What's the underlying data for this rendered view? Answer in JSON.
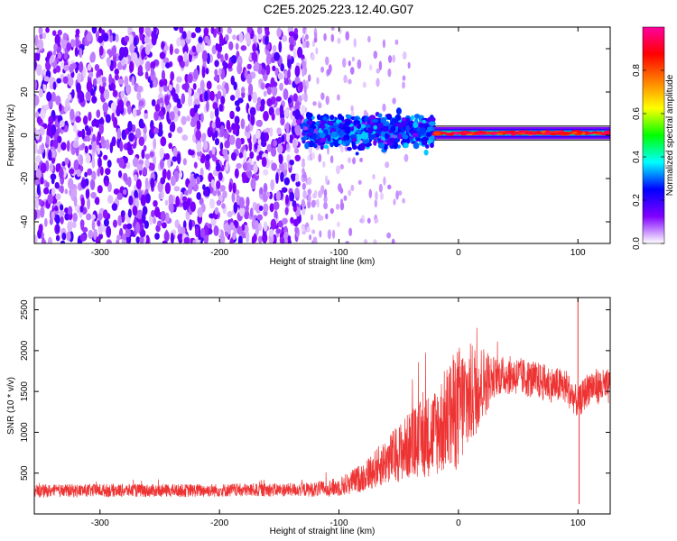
{
  "title": "C2E5.2025.223.12.40.G07",
  "chart_data": [
    {
      "type": "heatmap",
      "xlabel": "Height of straight line (km)",
      "ylabel": "Frequency (Hz)",
      "xlim": [
        -355,
        127
      ],
      "ylim": [
        -50,
        50
      ],
      "xticks": [
        -300,
        -200,
        -100,
        0,
        100
      ],
      "yticks": [
        -40,
        -20,
        0,
        20,
        40
      ],
      "grid": false,
      "description_of_data": [
        {
          "x_range": [
            -355,
            -130
          ],
          "freq_range": [
            -50,
            50
          ],
          "amplitude": 0.15,
          "note": "broadband noise"
        },
        {
          "x_range": [
            -130,
            -20
          ],
          "center_freq": 2,
          "freq_spread": 6,
          "amplitude": 0.25
        },
        {
          "x_range": [
            -20,
            127
          ],
          "center_freq": 1,
          "freq_spread": 2,
          "amplitude": 0.9
        }
      ],
      "colorbar": {
        "label": "Normalized spectral amplitude",
        "range": [
          0.0,
          1.0
        ],
        "ticks": [
          0.0,
          0.2,
          0.4,
          0.6,
          0.8
        ],
        "tick_labels": [
          "0.0",
          "0.2",
          "0.4",
          "0.6",
          "0.8"
        ],
        "colormap": [
          "#ffffff",
          "#8000ff",
          "#0000ff",
          "#00ffff",
          "#00ff00",
          "#ffff00",
          "#ff8000",
          "#ff0000",
          "#ff00a0"
        ]
      }
    },
    {
      "type": "line",
      "xlabel": "Height of straight line (km)",
      "ylabel": "SNR (10 * v/v)",
      "xlim": [
        -355,
        127
      ],
      "ylim": [
        0,
        2650
      ],
      "xticks": [
        -300,
        -200,
        -100,
        0,
        100
      ],
      "yticks": [
        500,
        1000,
        1500,
        2000,
        2500
      ],
      "grid": false,
      "series": [
        {
          "color": "#ee3333",
          "x": [
            -355,
            -300,
            -250,
            -200,
            -150,
            -120,
            -100,
            -80,
            -60,
            -40,
            -20,
            -10,
            0,
            10,
            20,
            30,
            40,
            50,
            60,
            70,
            80,
            90,
            100,
            110,
            127
          ],
          "y": [
            280,
            290,
            285,
            290,
            295,
            300,
            330,
            450,
            650,
            850,
            1000,
            1150,
            1300,
            1450,
            1600,
            1680,
            1700,
            1690,
            1650,
            1620,
            1580,
            1560,
            1350,
            1570,
            1550
          ]
        }
      ],
      "annotations": [
        {
          "x": 100,
          "y": 2650,
          "note": "spike"
        },
        {
          "x": 101,
          "y": 120,
          "note": "dip"
        }
      ]
    }
  ]
}
